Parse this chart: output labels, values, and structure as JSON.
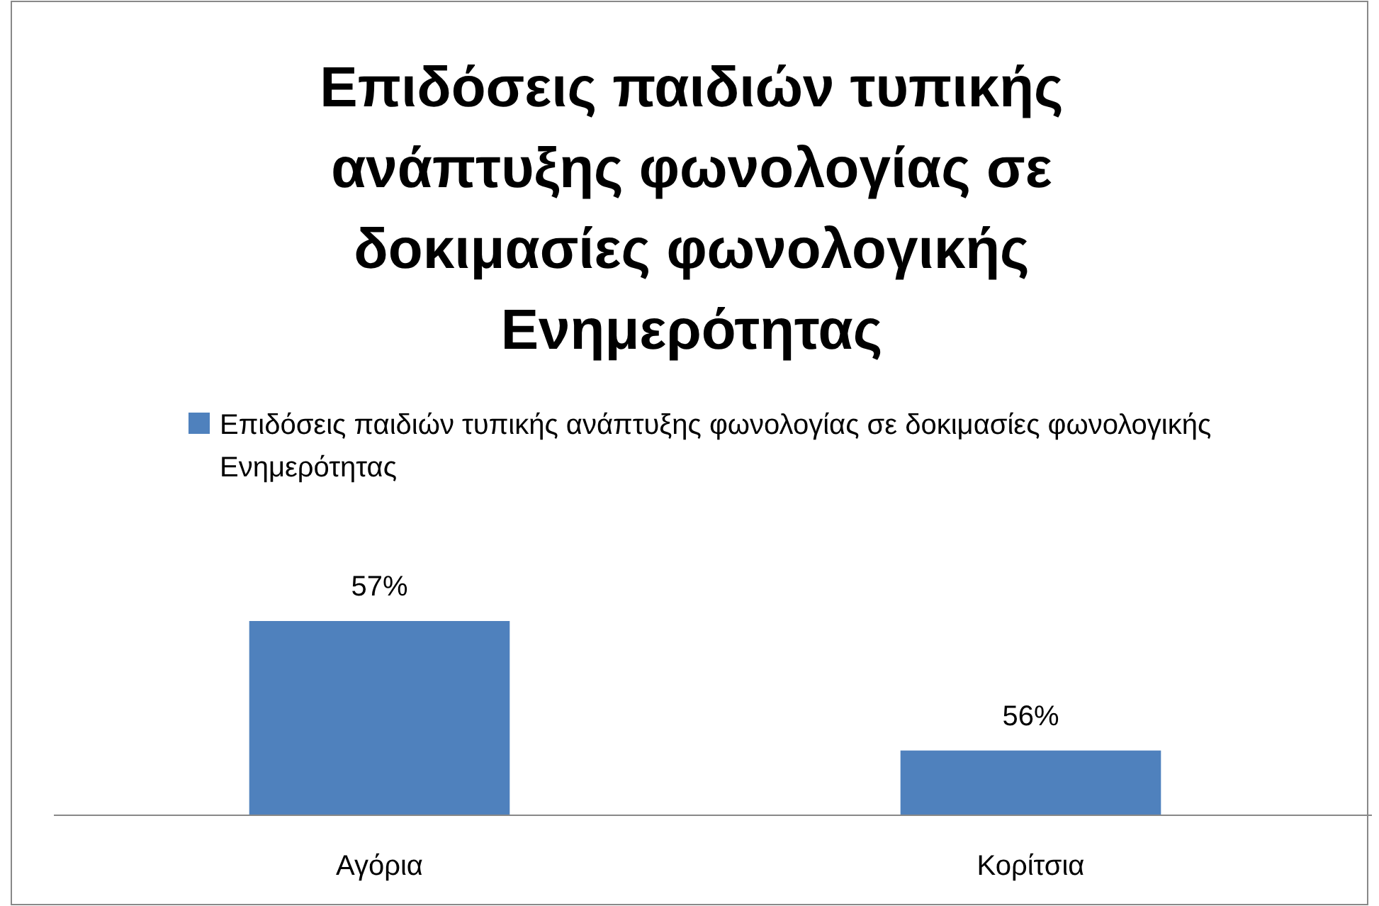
{
  "chart_data": {
    "type": "bar",
    "title": "Επιδόσεις παιδιών τυπικής ανάπτυξης φωνολογίας σε δοκιμασίες φωνολογικής Ενημερότητας",
    "categories": [
      "Αγόρια",
      "Κορίτσια"
    ],
    "series": [
      {
        "name": "Επιδόσεις παιδιών τυπικής ανάπτυξης φωνολογίας σε δοκιμασίες φωνολογικής Ενημερότητας",
        "color": "#4f81bd",
        "values": [
          57,
          56
        ],
        "value_labels": [
          "57%",
          "56%"
        ]
      }
    ],
    "ylim": [
      55.5,
      57
    ],
    "tick_labels": "x",
    "legend": "top"
  }
}
